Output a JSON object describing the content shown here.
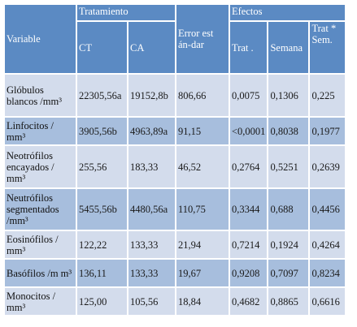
{
  "header": {
    "variable": "Variable",
    "tratamiento": "Tratamiento",
    "ct": "CT",
    "ca": "CA",
    "error": "Error est án-dar",
    "efectos": "Efectos",
    "trat": "Trat .",
    "semana": "Semana",
    "trat_sem": "Trat * Sem."
  },
  "rows": [
    {
      "variable": "Glóbulos blancos /mm³",
      "ct": "22305,56a",
      "ca": "19152,8b",
      "error": "806,66",
      "trat": "0,0075",
      "semana": "0,1306",
      "trat_sem": "0,225"
    },
    {
      "variable": "Linfocitos / mm³",
      "ct": "3905,56b",
      "ca": "4963,89a",
      "error": "91,15",
      "trat": "<0,0001",
      "semana": "0,8038",
      "trat_sem": "0,1977"
    },
    {
      "variable": "Neotrófilos encayados / mm³",
      "ct": "255,56",
      "ca": "183,33",
      "error": "46,52",
      "trat": "0,2764",
      "semana": "0,5251",
      "trat_sem": "0,2639"
    },
    {
      "variable": "Neutrófilos segmentados /mm³",
      "ct": "5455,56b",
      "ca": "4480,56a",
      "error": "110,75",
      "trat": "0,3344",
      "semana": "0,688",
      "trat_sem": "0,4456"
    },
    {
      "variable": "Eosinófilos / mm³",
      "ct": "122,22",
      "ca": "133,33",
      "error": "21,94",
      "trat": "0,7214",
      "semana": "0,1924",
      "trat_sem": "0,4264"
    },
    {
      "variable": "Basófilos /m m³",
      "ct": "136,11",
      "ca": "133,33",
      "error": "19,67",
      "trat": "0,9208",
      "semana": "0,7097",
      "trat_sem": "0,8234"
    },
    {
      "variable": "Monocitos / mm³",
      "ct": "125,00",
      "ca": "105,56",
      "error": "18,84",
      "trat": "0,4682",
      "semana": "0,8865",
      "trat_sem": "0,6616"
    }
  ]
}
